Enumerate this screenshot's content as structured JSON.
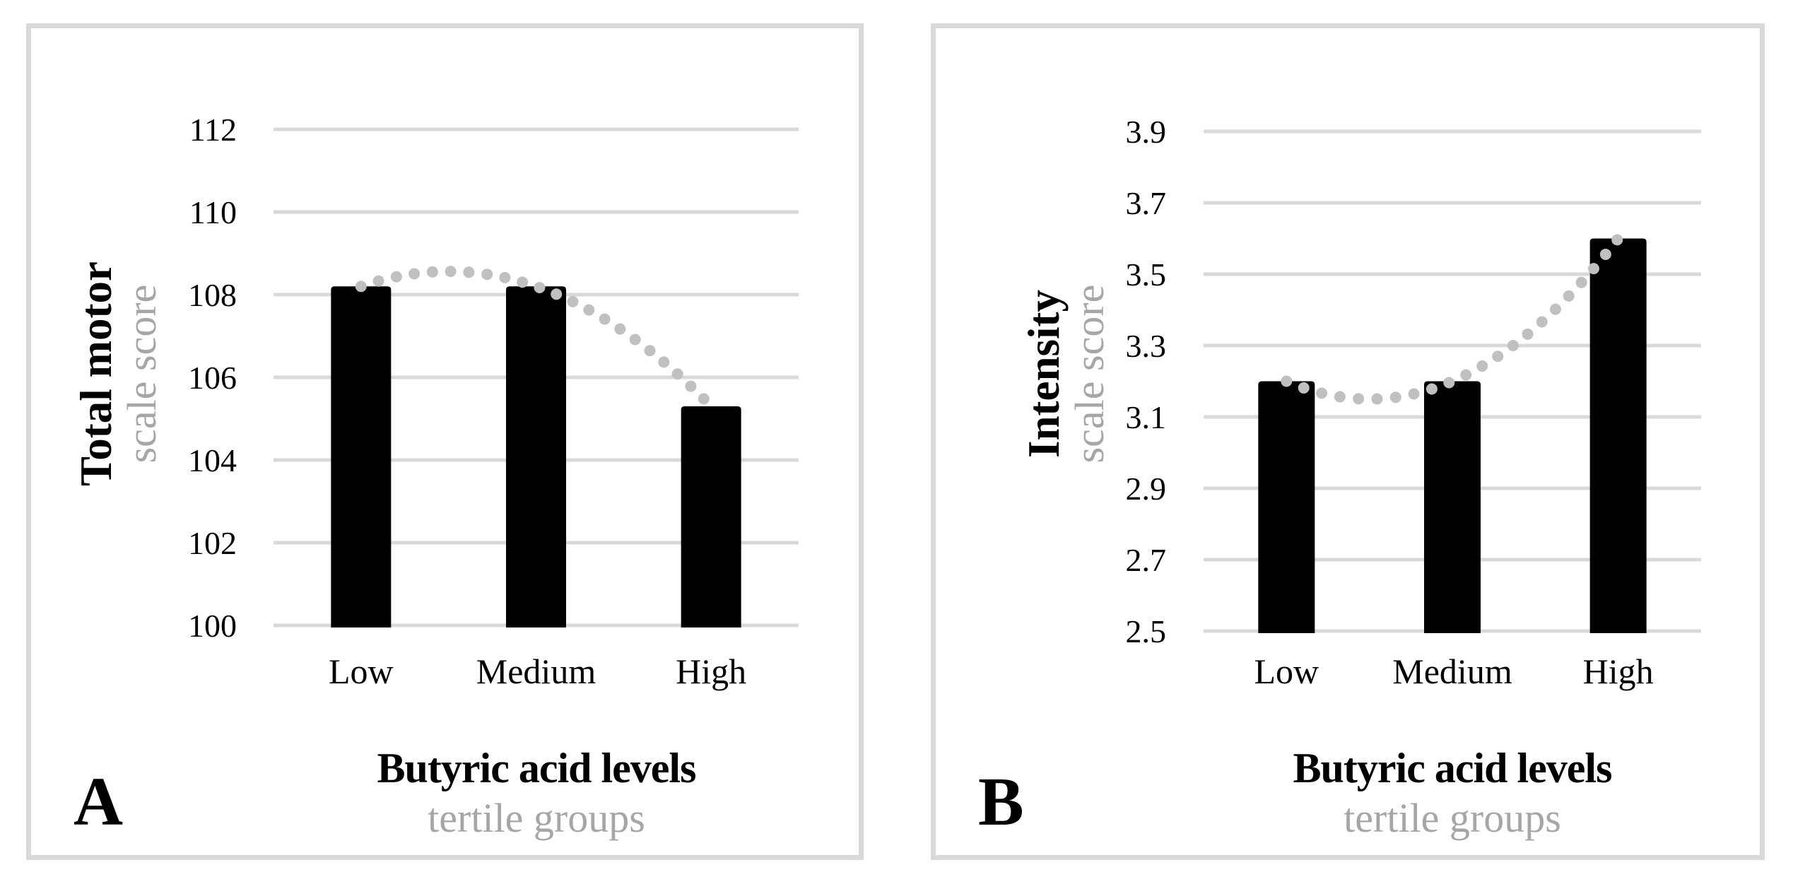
{
  "colors": {
    "bar": "#000000",
    "gridline": "#d9d9d9",
    "trend_dot": "#c0c0c0",
    "muted_text": "#a6a6a6",
    "text": "#000000",
    "panel_border": "#d9d9d9",
    "background": "#ffffff"
  },
  "chart_data": [
    {
      "type": "bar",
      "panel_label": "A",
      "y_title_bold": "Total motor",
      "y_title_gray": "scale score",
      "x_title_bold": "Butyric acid levels",
      "x_title_gray": "tertile groups",
      "categories": [
        "Low",
        "Medium",
        "High"
      ],
      "values": [
        108.2,
        108.2,
        105.3
      ],
      "y_ticks": [
        "112",
        "110",
        "108",
        "106",
        "104",
        "102",
        "100"
      ],
      "ylim": [
        100,
        112
      ],
      "grid": true,
      "legend": "none",
      "trendline": {
        "type": "polynomial-order-2",
        "style": "dotted",
        "through_values": [
          108.2,
          108.2,
          105.3
        ],
        "peak_value": 108.55
      }
    },
    {
      "type": "bar",
      "panel_label": "B",
      "y_title_bold": "Intensity",
      "y_title_gray": "scale score",
      "x_title_bold": "Butyric acid levels",
      "x_title_gray": "tertile groups",
      "categories": [
        "Low",
        "Medium",
        "High"
      ],
      "values": [
        3.2,
        3.2,
        3.6
      ],
      "y_ticks": [
        "3.9",
        "3.7",
        "3.5",
        "3.3",
        "3.1",
        "2.9",
        "2.7",
        "2.5"
      ],
      "ylim": [
        2.5,
        3.9
      ],
      "grid": true,
      "legend": "none",
      "trendline": {
        "type": "polynomial-order-2",
        "style": "dotted",
        "through_values": [
          3.2,
          3.2,
          3.6
        ],
        "dip_value": 3.15
      }
    }
  ]
}
